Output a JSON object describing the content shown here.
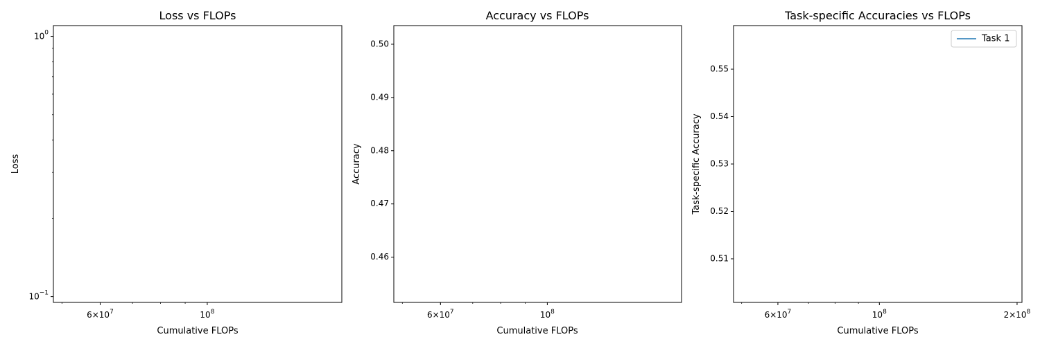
{
  "figure": {
    "panels": [
      {
        "title": "Loss vs FLOPs",
        "xlabel": "Cumulative FLOPs",
        "ylabel": "Loss"
      },
      {
        "title": "Accuracy vs FLOPs",
        "xlabel": "Cumulative FLOPs",
        "ylabel": "Accuracy"
      },
      {
        "title": "Task-specific Accuracies vs FLOPs",
        "xlabel": "Cumulative FLOPs",
        "ylabel": "Task-specific Accuracy"
      }
    ]
  },
  "chart_data": [
    {
      "type": "line",
      "title": "Loss vs FLOPs",
      "xlabel": "Cumulative FLOPs",
      "ylabel": "Loss",
      "xscale": "log",
      "yscale": "log",
      "xlim": [
        48000000,
        190000000
      ],
      "ylim": [
        0.095,
        1.1
      ],
      "xticks": [
        {
          "value": 60000000,
          "base": "6",
          "exp": "7"
        },
        {
          "value": 100000000,
          "base": "",
          "exp": "8"
        }
      ],
      "yticks": [
        {
          "value": 0.1,
          "base": "",
          "exp": "−1"
        },
        {
          "value": 1,
          "base": "",
          "exp": "0"
        }
      ],
      "series": []
    },
    {
      "type": "line",
      "title": "Accuracy vs FLOPs",
      "xlabel": "Cumulative FLOPs",
      "ylabel": "Accuracy",
      "xscale": "log",
      "yscale": "linear",
      "xlim": [
        48000000,
        190000000
      ],
      "ylim": [
        0.4515,
        0.5035
      ],
      "xticks": [
        {
          "value": 60000000,
          "base": "6",
          "exp": "7"
        },
        {
          "value": 100000000,
          "base": "",
          "exp": "8"
        }
      ],
      "yticks": [
        {
          "value": 0.46,
          "label": "0.46"
        },
        {
          "value": 0.47,
          "label": "0.47"
        },
        {
          "value": 0.48,
          "label": "0.48"
        },
        {
          "value": 0.49,
          "label": "0.49"
        },
        {
          "value": 0.5,
          "label": "0.50"
        }
      ],
      "series": []
    },
    {
      "type": "line",
      "title": "Task-specific Accuracies vs FLOPs",
      "xlabel": "Cumulative FLOPs",
      "ylabel": "Task-specific Accuracy",
      "xscale": "log",
      "yscale": "linear",
      "xlim": [
        48000000,
        205000000
      ],
      "ylim": [
        0.5008,
        0.5592
      ],
      "xticks": [
        {
          "value": 60000000,
          "base": "6",
          "exp": "7"
        },
        {
          "value": 100000000,
          "base": "",
          "exp": "8"
        },
        {
          "value": 200000000,
          "base": "2",
          "exp": "8"
        }
      ],
      "yticks": [
        {
          "value": 0.51,
          "label": "0.51"
        },
        {
          "value": 0.52,
          "label": "0.52"
        },
        {
          "value": 0.53,
          "label": "0.53"
        },
        {
          "value": 0.54,
          "label": "0.54"
        },
        {
          "value": 0.55,
          "label": "0.55"
        }
      ],
      "legend": {
        "position": "top-right",
        "entries": [
          {
            "name": "Task 1",
            "color": "#1f77b4"
          }
        ]
      },
      "series": [
        {
          "name": "Task 1",
          "color": "#1f77b4",
          "x": [],
          "y": []
        }
      ]
    }
  ]
}
